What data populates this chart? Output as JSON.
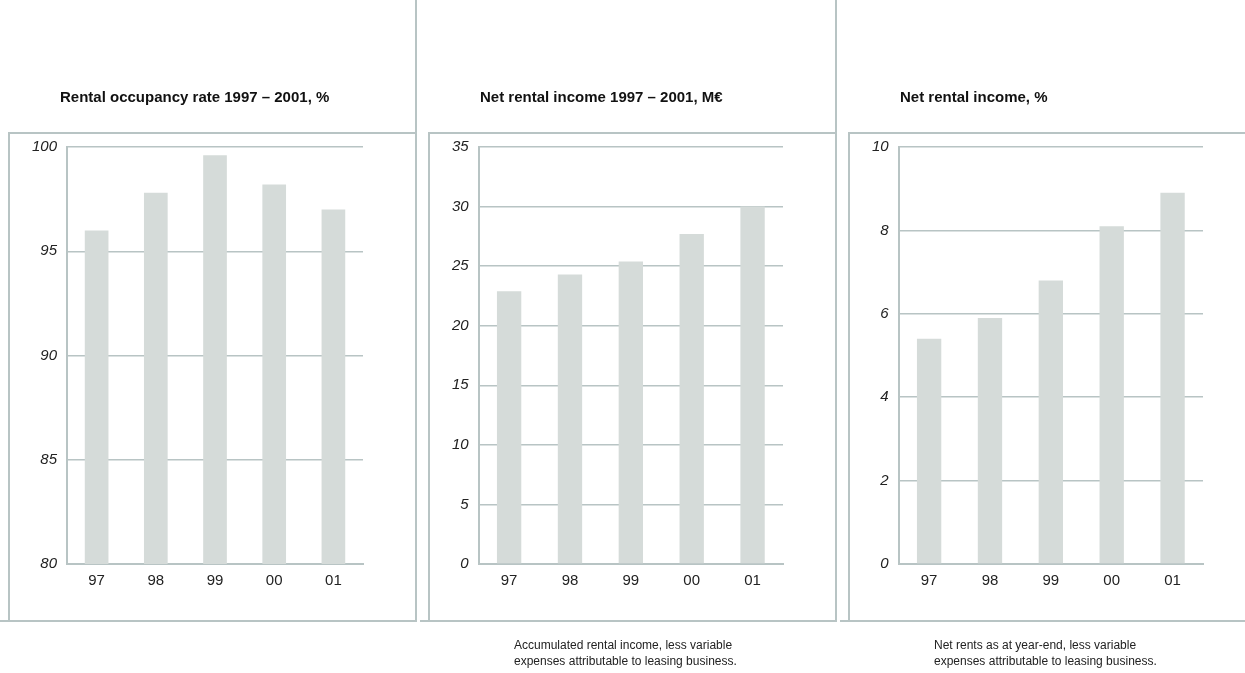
{
  "chart_data": [
    {
      "type": "bar",
      "title": "Rental occupancy rate 1997 – 2001, %",
      "categories": [
        "97",
        "98",
        "99",
        "00",
        "01"
      ],
      "values": [
        96.0,
        97.8,
        99.6,
        98.2,
        97.0
      ],
      "color": "#d5dbd9",
      "ylim": [
        80,
        100
      ],
      "yticks": [
        80,
        85,
        90,
        95,
        100
      ],
      "grid": "y"
    },
    {
      "type": "bar",
      "title": "Net rental income 1997 – 2001, M€",
      "categories": [
        "97",
        "98",
        "99",
        "00",
        "01"
      ],
      "values": [
        22.9,
        24.3,
        25.4,
        27.7,
        30.0
      ],
      "color": "#d5dbd9",
      "ylim": [
        0,
        35
      ],
      "yticks": [
        0,
        5,
        10,
        15,
        20,
        25,
        30,
        35
      ],
      "grid": "y",
      "annotations": [
        "Accumulated rental income, less variable expenses attributable to leasing business."
      ]
    },
    {
      "type": "bar",
      "title": "Net rental income, %",
      "categories": [
        "97",
        "98",
        "99",
        "00",
        "01"
      ],
      "values": [
        5.4,
        5.9,
        6.8,
        8.1,
        8.9
      ],
      "color": "#d5dbd9",
      "ylim": [
        0,
        10
      ],
      "yticks": [
        0,
        2,
        4,
        6,
        8,
        10
      ],
      "grid": "y",
      "annotations": [
        "Net rents as at year-end, less variable expenses attributable to leasing business."
      ]
    }
  ]
}
